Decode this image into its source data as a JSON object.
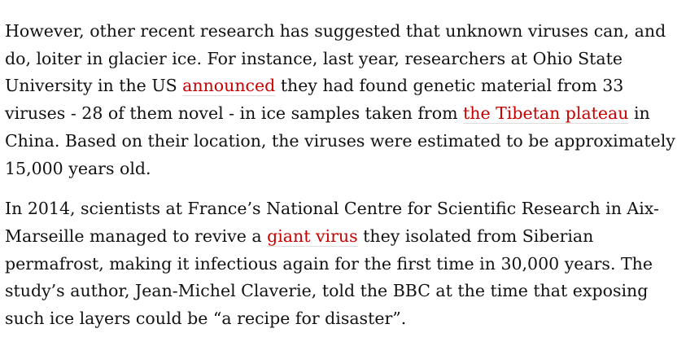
{
  "article": {
    "paragraph1": {
      "text1": "However, other recent research has suggested that unknown viruses can, and do, loiter in glacier ice. For instance, last year, researchers at Ohio State University in the US ",
      "link1": "announced",
      "text2": " they had found genetic material from 33 viruses - 28 of them novel - in ice samples taken from ",
      "link2": "the Tibetan plateau",
      "text3": " in China. Based on their location, the viruses were estimated to be approximately 15,000 years old."
    },
    "paragraph2": {
      "text1": "In 2014, scientists at France’s National Centre for Scientific Research in Aix-Marseille managed to revive a ",
      "link1": "giant virus",
      "text2": " they isolated from Siberian permafrost, making it infectious again for the first time in 30,000 years. The study’s author, Jean-Michel Claverie, told the BBC at the time that exposing such ice layers could be “a recipe for disaster”."
    }
  },
  "colors": {
    "text": "#121212",
    "link": "#c70000",
    "link_underline": "#dcdcdc",
    "background": "#ffffff"
  }
}
